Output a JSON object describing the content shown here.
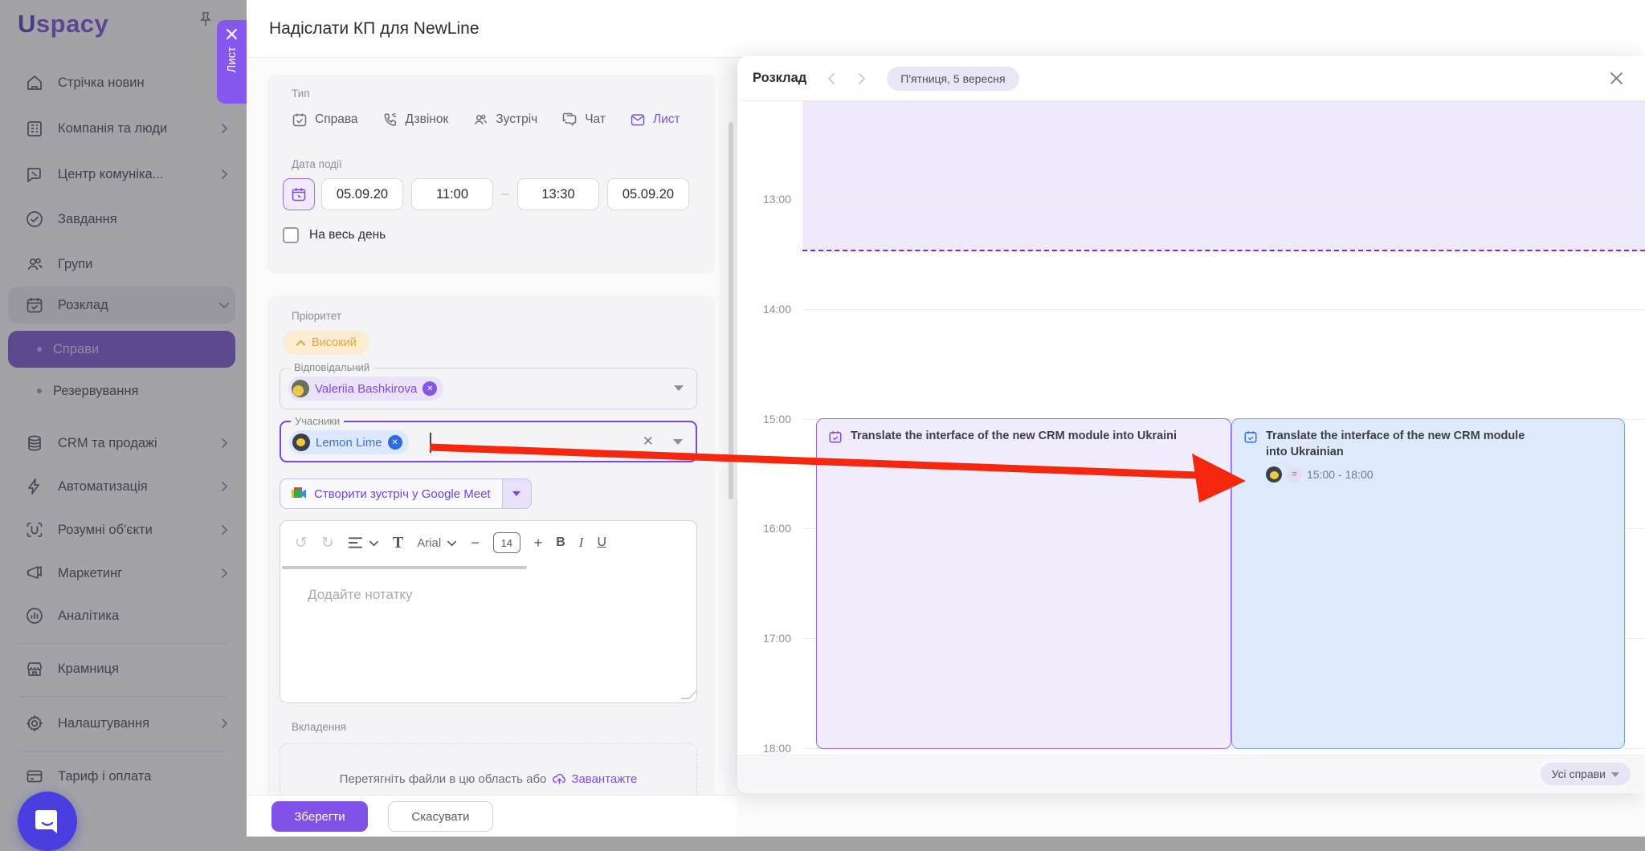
{
  "brand": {
    "logo": "Uspacy"
  },
  "colors": {
    "accent": "#8458F0",
    "priority_bg": "#FCEDD2",
    "priority_text": "#E2A63D",
    "event_purple_border": "#9A63F0",
    "event_blue_border": "#7AA3F0",
    "arrow_red": "#F5270F"
  },
  "sidebar": {
    "items": [
      {
        "type": "item",
        "icon": "home-icon",
        "label": "Стрічка новин"
      },
      {
        "type": "item",
        "icon": "company-icon",
        "label": "Компанія та люди",
        "arrow": true
      },
      {
        "type": "item",
        "icon": "communication-icon",
        "label": "Центр комуніка...",
        "arrow": true
      },
      {
        "type": "item",
        "icon": "tasks-icon",
        "label": "Завдання"
      },
      {
        "type": "item",
        "icon": "groups-icon",
        "label": "Групи"
      },
      {
        "type": "parent",
        "icon": "schedule-icon",
        "label": "Розклад",
        "expanded": true
      },
      {
        "type": "sub",
        "label": "Справи",
        "selected": true
      },
      {
        "type": "sub",
        "label": "Резервування"
      },
      {
        "type": "item",
        "icon": "crm-icon",
        "label": "CRM та продажі",
        "arrow": true
      },
      {
        "type": "item",
        "icon": "automation-icon",
        "label": "Автоматизація",
        "arrow": true
      },
      {
        "type": "item",
        "icon": "smart-objects-icon",
        "label": "Розумні об'єкти",
        "arrow": true
      },
      {
        "type": "item",
        "icon": "marketing-icon",
        "label": "Маркетинг",
        "arrow": true
      },
      {
        "type": "item",
        "icon": "analytics-icon",
        "label": "Аналітика"
      },
      {
        "type": "divider"
      },
      {
        "type": "item",
        "icon": "store-icon",
        "label": "Крамниця"
      },
      {
        "type": "divider"
      },
      {
        "type": "item",
        "icon": "settings-icon",
        "label": "Налаштування",
        "arrow": true
      },
      {
        "type": "divider"
      },
      {
        "type": "item",
        "icon": "billing-icon",
        "label": "Тариф і оплата"
      }
    ]
  },
  "modal": {
    "title": "Надіслати КП для NewLine",
    "side_tab_label": "Лист",
    "form": {
      "type_label": "Тип",
      "type_options": [
        {
          "label": "Справа",
          "icon": "task-calendar-icon",
          "selected": false
        },
        {
          "label": "Дзвінок",
          "icon": "call-icon",
          "selected": false
        },
        {
          "label": "Зустріч",
          "icon": "meeting-icon",
          "selected": false
        },
        {
          "label": "Чат",
          "icon": "chat-icon",
          "selected": false
        },
        {
          "label": "Лист",
          "icon": "mail-icon",
          "selected": true
        }
      ],
      "date_label": "Дата події",
      "start_date": "05.09.20",
      "start_time": "11:00",
      "end_time": "13:30",
      "end_date": "05.09.20",
      "all_day_label": "На весь день",
      "priority_label": "Пріоритет",
      "priority_value": "Високий",
      "responsible_label": "Відповідальний",
      "responsible_chip": "Valeriia Bashkirova",
      "participants_label": "Учасники",
      "participants_chip": "Lemon Lime",
      "meet_button": "Створити зустріч у Google Meet",
      "editor": {
        "text_tool": "T",
        "font_name": "Arial",
        "minus": "−",
        "font_size": "14",
        "plus": "+",
        "bold": "B",
        "italic": "I",
        "underline": "U",
        "placeholder": "Додайте нотатку"
      },
      "attachments_label": "Вкладення",
      "drop_text": "Перетягніть файли в цю область або",
      "upload_link": "Завантажте",
      "save_label": "Зберегти",
      "cancel_label": "Скасувати"
    }
  },
  "schedule": {
    "title": "Розклад",
    "date_pill": "П'ятниця, 5 вересня",
    "times": [
      "13:00",
      "14:00",
      "15:00",
      "16:00",
      "17:00",
      "18:00"
    ],
    "events": [
      {
        "title": "Translate the interface of the new CRM module into Ukraini",
        "color": "purple"
      },
      {
        "title": "Translate the interface of the new CRM module into Ukrainian",
        "time": "15:00 - 18:00",
        "color": "blue"
      }
    ],
    "filter_label": "Усі справи"
  }
}
